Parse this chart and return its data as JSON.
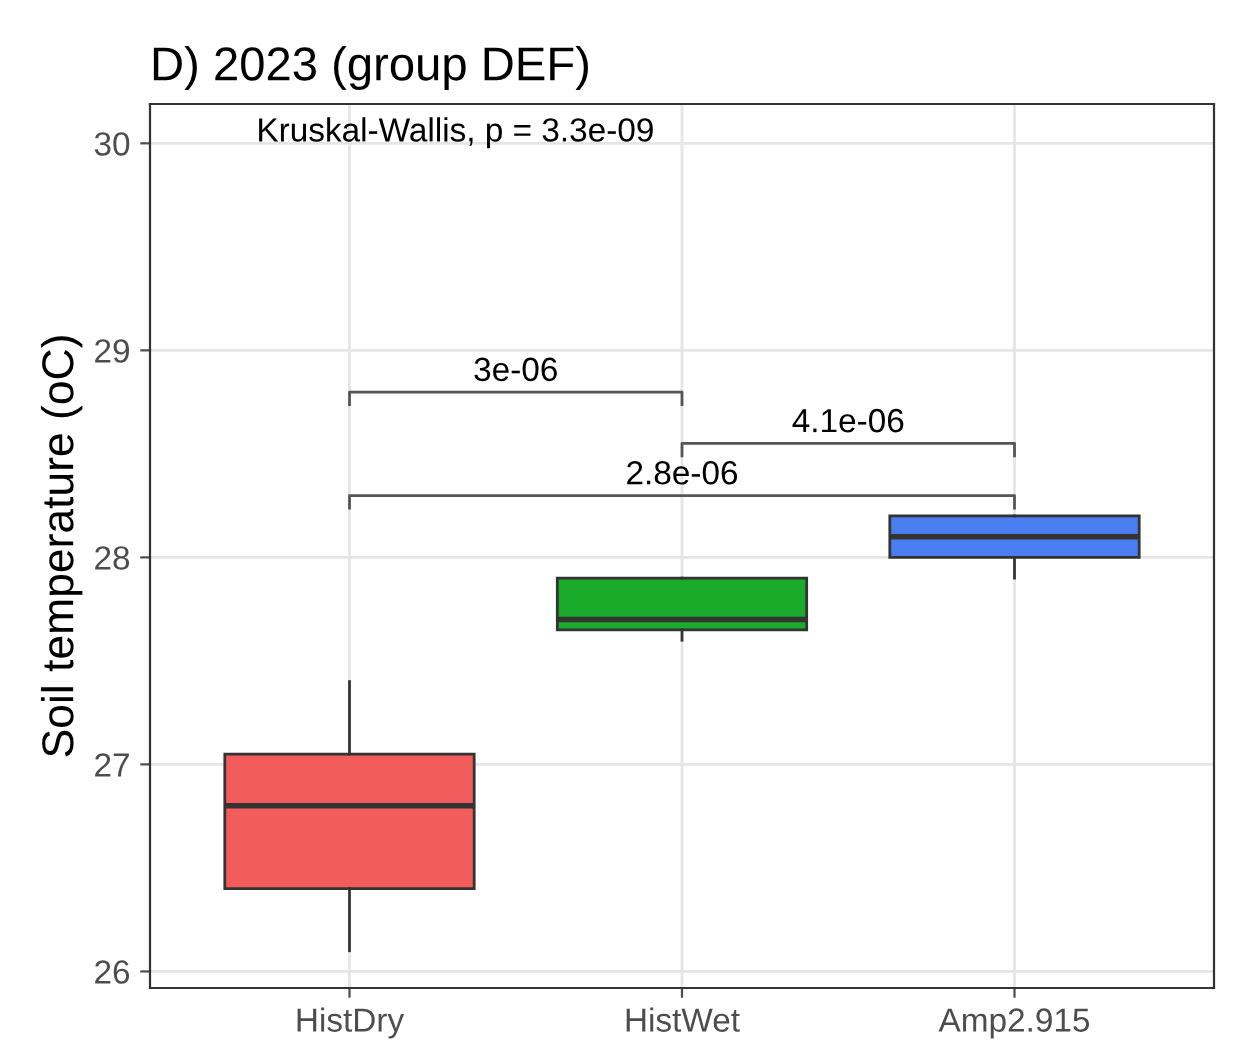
{
  "chart_data": {
    "type": "box",
    "title": "D) 2023 (group DEF)",
    "ylabel": "Soil temperature (oC)",
    "categories": [
      "HistDry",
      "HistWet",
      "Amp2.915"
    ],
    "colors": [
      "#f25c5a",
      "#1aab2a",
      "#4a7ef0"
    ],
    "boxes": [
      {
        "low": 26.1,
        "q1": 26.4,
        "median": 26.8,
        "q3": 27.05,
        "high": 27.4
      },
      {
        "low": 27.6,
        "q1": 27.65,
        "median": 27.7,
        "q3": 27.9,
        "high": 27.9
      },
      {
        "low": 27.9,
        "q1": 28.0,
        "median": 28.1,
        "q3": 28.2,
        "high": 28.2
      }
    ],
    "ylim": [
      25.92,
      30.19
    ],
    "yticks": [
      26,
      27,
      28,
      29,
      30
    ],
    "grid": true,
    "annotations": [
      "Kruskal-Wallis, p = 3.3e-09",
      "3e-06",
      "4.1e-06",
      "2.8e-06"
    ]
  }
}
